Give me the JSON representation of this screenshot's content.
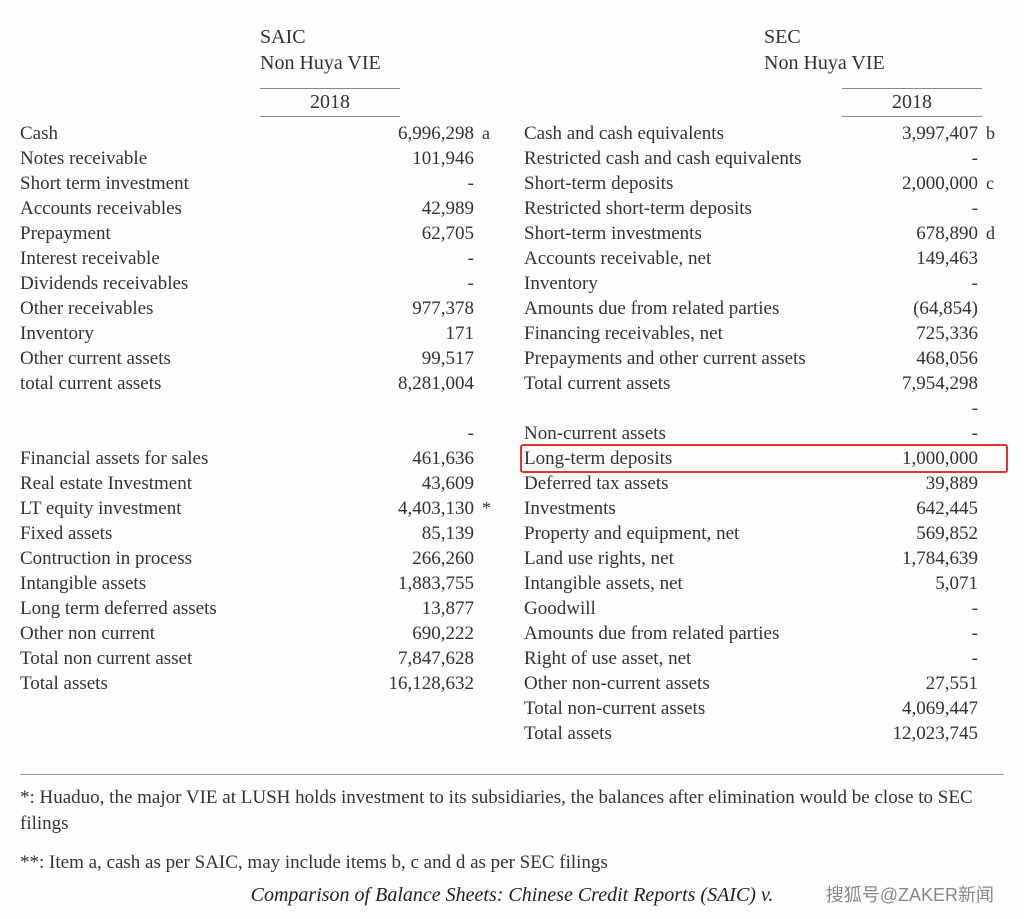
{
  "left": {
    "header1": "SAIC",
    "header2": "Non Huya VIE",
    "year": "2018",
    "rows": [
      {
        "label": "Cash",
        "value": "6,996,298",
        "note": "a"
      },
      {
        "label": "Notes receivable",
        "value": "101,946",
        "note": ""
      },
      {
        "label": "Short term investment",
        "value": "-",
        "note": ""
      },
      {
        "label": "Accounts receivables",
        "value": "42,989",
        "note": ""
      },
      {
        "label": "Prepayment",
        "value": "62,705",
        "note": ""
      },
      {
        "label": "Interest receivable",
        "value": "-",
        "note": ""
      },
      {
        "label": "Dividends receivables",
        "value": "-",
        "note": ""
      },
      {
        "label": "Other receivables",
        "value": "977,378",
        "note": ""
      },
      {
        "label": "Inventory",
        "value": "171",
        "note": ""
      },
      {
        "label": "Other current assets",
        "value": "99,517",
        "note": ""
      },
      {
        "label": "total current assets",
        "value": "8,281,004",
        "note": ""
      },
      {
        "label": "",
        "value": "",
        "note": ""
      },
      {
        "label": "",
        "value": "-",
        "note": ""
      },
      {
        "label": "Financial assets for sales",
        "value": "461,636",
        "note": ""
      },
      {
        "label": "Real estate Investment",
        "value": "43,609",
        "note": ""
      },
      {
        "label": "LT equity investment",
        "value": "4,403,130",
        "note": "*"
      },
      {
        "label": "Fixed assets",
        "value": "85,139",
        "note": ""
      },
      {
        "label": "Contruction in process",
        "value": "266,260",
        "note": ""
      },
      {
        "label": "Intangible assets",
        "value": "1,883,755",
        "note": ""
      },
      {
        "label": "Long term deferred assets",
        "value": "13,877",
        "note": ""
      },
      {
        "label": "Other non current",
        "value": "690,222",
        "note": ""
      },
      {
        "label": "Total non current asset",
        "value": "7,847,628",
        "note": ""
      },
      {
        "label": "Total assets",
        "value": "16,128,632",
        "note": ""
      }
    ]
  },
  "right": {
    "header1": "SEC",
    "header2": "Non Huya VIE",
    "year": "2018",
    "rows": [
      {
        "label": "Cash and cash equivalents",
        "value": "3,997,407",
        "note": "b"
      },
      {
        "label": "Restricted cash and cash equivalents",
        "value": "-",
        "note": ""
      },
      {
        "label": "Short-term deposits",
        "value": "2,000,000",
        "note": "c"
      },
      {
        "label": "Restricted short-term deposits",
        "value": "-",
        "note": ""
      },
      {
        "label": "Short-term investments",
        "value": "678,890",
        "note": "d"
      },
      {
        "label": "Accounts receivable, net",
        "value": "149,463",
        "note": ""
      },
      {
        "label": "Inventory",
        "value": "-",
        "note": ""
      },
      {
        "label": "Amounts due from related parties",
        "value": "(64,854)",
        "note": ""
      },
      {
        "label": "Financing receivables, net",
        "value": "725,336",
        "note": ""
      },
      {
        "label": "Prepayments and other current assets",
        "value": "468,056",
        "note": ""
      },
      {
        "label": "Total current assets",
        "value": "7,954,298",
        "note": ""
      },
      {
        "label": "",
        "value": "-",
        "note": ""
      },
      {
        "label": "Non-current assets",
        "value": "-",
        "note": ""
      },
      {
        "label": "Long-term deposits",
        "value": "1,000,000",
        "note": "",
        "highlight": true
      },
      {
        "label": "Deferred tax assets",
        "value": "39,889",
        "note": ""
      },
      {
        "label": "Investments",
        "value": "642,445",
        "note": ""
      },
      {
        "label": "Property and equipment, net",
        "value": "569,852",
        "note": ""
      },
      {
        "label": "Land use rights, net",
        "value": "1,784,639",
        "note": ""
      },
      {
        "label": "Intangible assets, net",
        "value": "5,071",
        "note": ""
      },
      {
        "label": "Goodwill",
        "value": "-",
        "note": ""
      },
      {
        "label": "Amounts due from related parties",
        "value": "-",
        "note": ""
      },
      {
        "label": "Right of use asset, net",
        "value": "-",
        "note": ""
      },
      {
        "label": "Other non-current assets",
        "value": "27,551",
        "note": ""
      },
      {
        "label": "Total non-current assets",
        "value": "4,069,447",
        "note": ""
      },
      {
        "label": "Total assets",
        "value": "12,023,745",
        "note": ""
      }
    ]
  },
  "footnotes": {
    "f1": "*: Huaduo, the major VIE at LUSH holds investment to its subsidiaries, the balances after elimination would be close to SEC filings",
    "f2": "**: Item a, cash as per SAIC, may include items b, c and d as per SEC filings"
  },
  "caption": "Comparison of Balance Sheets: Chinese Credit Reports (SAIC) v.",
  "watermark": "搜狐号@ZAKER新闻"
}
